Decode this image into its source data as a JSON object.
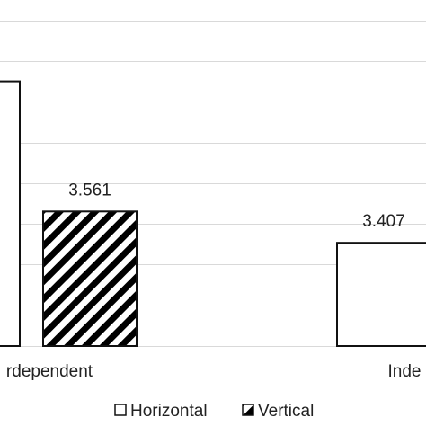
{
  "chart_data": {
    "type": "bar",
    "categories": [
      "rdependent",
      "Inde"
    ],
    "series": [
      {
        "name": "Horizontal",
        "values": [
          4.2,
          3.407
        ],
        "pattern": "solid-white"
      },
      {
        "name": "Vertical",
        "values": [
          3.561,
          null
        ],
        "pattern": "diagonal-hatch"
      }
    ],
    "data_labels": [
      {
        "series": 0,
        "category": 0,
        "text": ""
      },
      {
        "series": 1,
        "category": 0,
        "text": "3.561"
      },
      {
        "series": 0,
        "category": 1,
        "text": "3.407"
      }
    ],
    "ylim": [
      2.9,
      4.6
    ],
    "grid": true,
    "legend": "bottom",
    "colors": {
      "bar_stroke": "#111111",
      "grid": "#d9d9d9",
      "text": "#222222"
    }
  }
}
